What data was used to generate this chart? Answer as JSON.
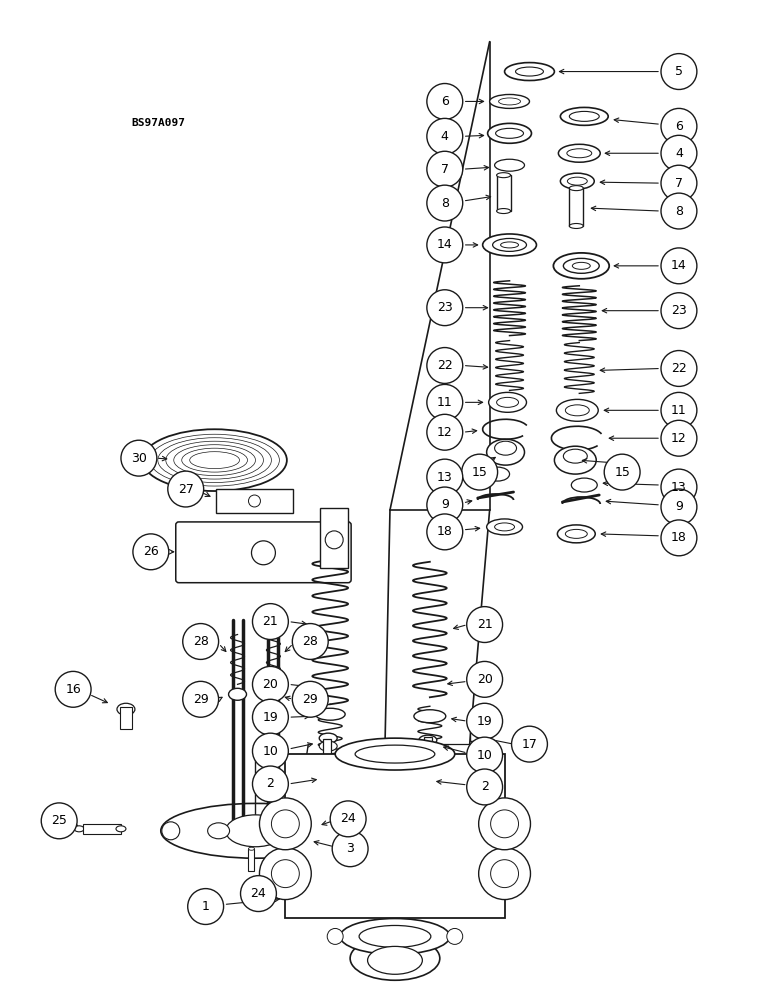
{
  "bg_color": "#ffffff",
  "fig_width": 7.72,
  "fig_height": 10.0,
  "lc": "#1a1a1a",
  "tc": "#000000",
  "watermark": "BS97A097",
  "label_r": 0.022
}
